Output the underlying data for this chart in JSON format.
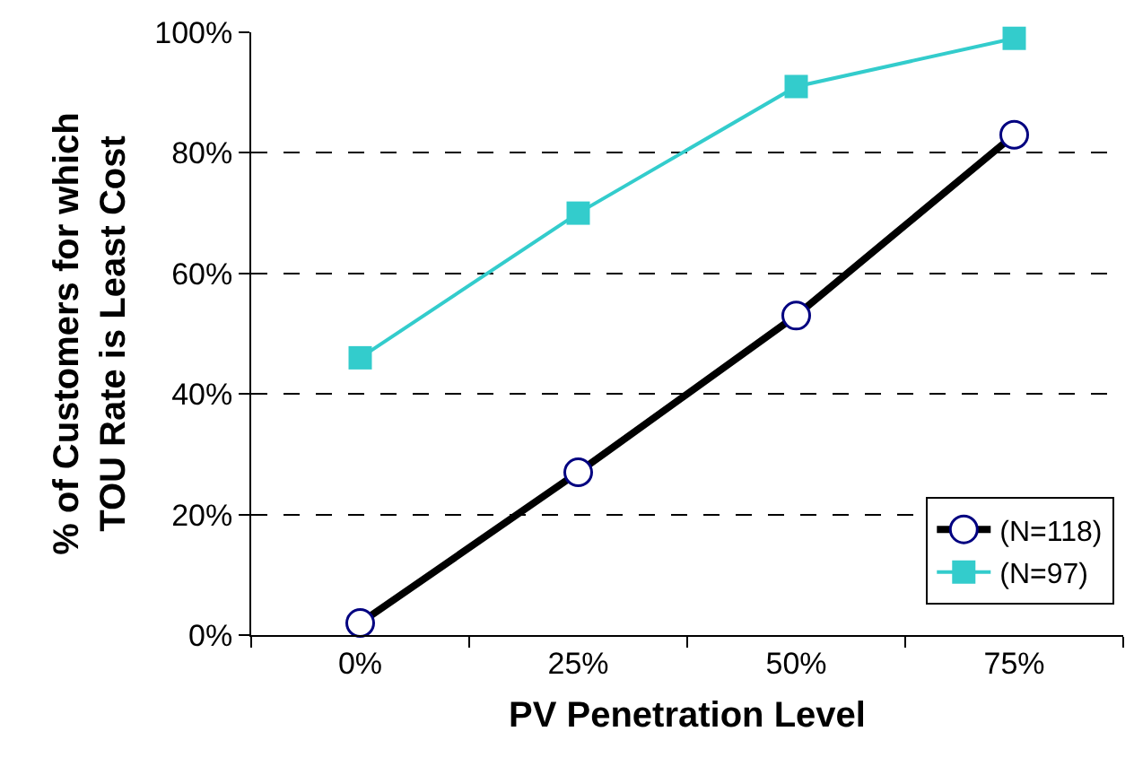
{
  "chart_data": {
    "type": "line",
    "xlabel": "PV Penetration Level",
    "ylabel": "% of Customers for which\nTOU Rate is Least Cost",
    "categories": [
      "0%",
      "25%",
      "50%",
      "75%"
    ],
    "series": [
      {
        "name": "(N=118)",
        "color": "#000000",
        "marker": "circle",
        "values": [
          2,
          27,
          53,
          83
        ]
      },
      {
        "name": "(N=97)",
        "color": "#33cccc",
        "marker": "square",
        "values": [
          46,
          70,
          91,
          99
        ]
      }
    ],
    "ylim": [
      0,
      100
    ],
    "yticks": [
      {
        "value": 0,
        "label": "0%"
      },
      {
        "value": 20,
        "label": "20%"
      },
      {
        "value": 40,
        "label": "40%"
      },
      {
        "value": 60,
        "label": "60%"
      },
      {
        "value": 80,
        "label": "80%"
      },
      {
        "value": 100,
        "label": "100%"
      }
    ],
    "grid": "y",
    "legend": "bottom right",
    "line_style": "solid"
  }
}
